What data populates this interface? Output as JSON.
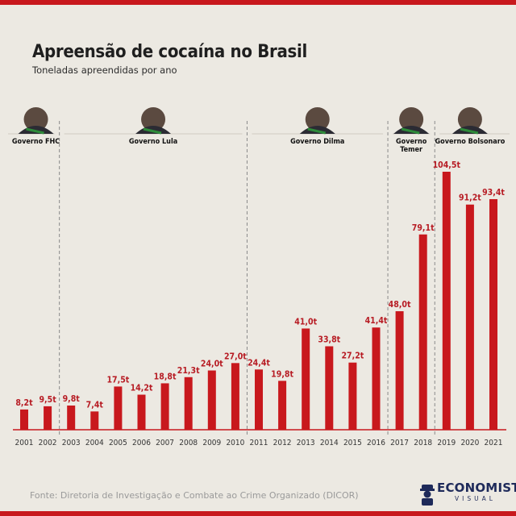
{
  "title": "Apreensão de cocaína no Brasil",
  "subtitle": "Toneladas apreendidas por ano",
  "source": "Fonte: Diretoria de Investigação e Combate ao Crime Organizado (DICOR)",
  "logo": {
    "word": "ECONOMISTA",
    "sub": "VISUAL"
  },
  "colors": {
    "bar": "#c8181d",
    "label": "#b71c24",
    "background": "#ece9e2"
  },
  "governments": [
    {
      "label": [
        "Governo FHC"
      ],
      "start": "2001",
      "end": "2002"
    },
    {
      "label": [
        "Governo Lula"
      ],
      "start": "2003",
      "end": "2010"
    },
    {
      "label": [
        "Governo Dilma"
      ],
      "start": "2011",
      "end": "2016"
    },
    {
      "label": [
        "Governo",
        "Temer"
      ],
      "start": "2017",
      "end": "2018"
    },
    {
      "label": [
        "Governo Bolsonaro"
      ],
      "start": "2019",
      "end": "2021"
    }
  ],
  "chart_data": {
    "type": "bar",
    "categories": [
      "2001",
      "2002",
      "2003",
      "2004",
      "2005",
      "2006",
      "2007",
      "2008",
      "2009",
      "2010",
      "2011",
      "2012",
      "2013",
      "2014",
      "2015",
      "2016",
      "2017",
      "2018",
      "2019",
      "2020",
      "2021"
    ],
    "values": [
      8.2,
      9.5,
      9.8,
      7.4,
      17.5,
      14.2,
      18.8,
      21.3,
      24.0,
      27.0,
      24.4,
      19.8,
      41.0,
      33.8,
      27.2,
      41.4,
      48.0,
      79.1,
      104.5,
      91.2,
      93.4
    ],
    "data_labels": [
      "8,2t",
      "9,5t",
      "9,8t",
      "7,4t",
      "17,5t",
      "14,2t",
      "18,8t",
      "21,3t",
      "24,0t",
      "27,0t",
      "24,4t",
      "19,8t",
      "41,0t",
      "33,8t",
      "27,2t",
      "41,4t",
      "48,0t",
      "79,1t",
      "104,5t",
      "91,2t",
      "93,4t"
    ],
    "title": "Apreensão de cocaína no Brasil",
    "subtitle": "Toneladas apreendidas por ano",
    "ylim": [
      0,
      104.5
    ],
    "grid": false,
    "legend": "none"
  }
}
